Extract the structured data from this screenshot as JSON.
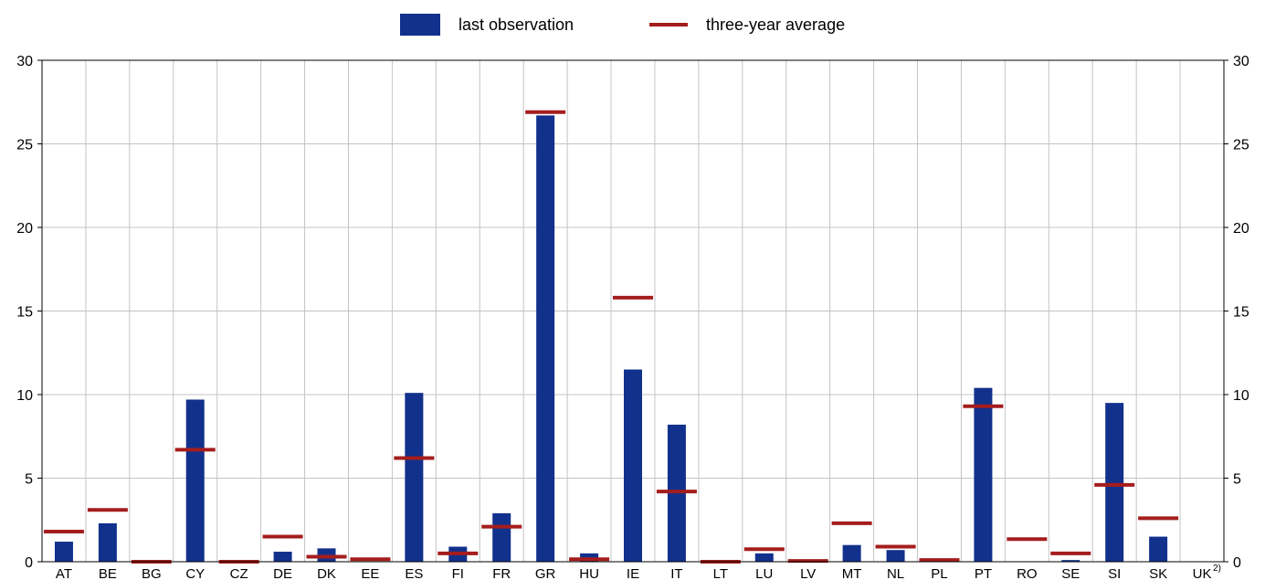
{
  "chart_data": {
    "type": "bar",
    "categories": [
      "AT",
      "BE",
      "BG",
      "CY",
      "CZ",
      "DE",
      "DK",
      "EE",
      "ES",
      "FI",
      "FR",
      "GR",
      "HU",
      "IE",
      "IT",
      "LT",
      "LU",
      "LV",
      "MT",
      "NL",
      "PL",
      "PT",
      "RO",
      "SE",
      "SI",
      "SK",
      "UK"
    ],
    "category_footnotes": {
      "UK": "2)"
    },
    "series": [
      {
        "name": "last observation",
        "style": "bar",
        "color": "#12318c",
        "values": [
          1.2,
          2.3,
          0.0,
          9.7,
          0.0,
          0.6,
          0.8,
          0.0,
          10.1,
          0.9,
          2.9,
          26.7,
          0.5,
          11.5,
          8.2,
          0.0,
          0.5,
          0.0,
          1.0,
          0.7,
          0.0,
          10.4,
          0.0,
          0.1,
          9.5,
          1.5,
          null
        ]
      },
      {
        "name": "three-year average",
        "style": "marker",
        "color": "#a51d1d",
        "values": [
          1.8,
          3.1,
          0.0,
          6.7,
          0.0,
          1.5,
          0.3,
          0.15,
          6.2,
          0.5,
          2.1,
          26.9,
          0.15,
          15.8,
          4.2,
          0.0,
          0.75,
          0.05,
          2.3,
          0.9,
          0.1,
          9.3,
          1.35,
          0.5,
          4.6,
          2.6,
          null
        ]
      }
    ],
    "ylim": [
      0,
      30
    ],
    "yticks": [
      0,
      5,
      10,
      15,
      20,
      25,
      30
    ],
    "grid": true,
    "legend_position": "top-center",
    "y_axis_both_sides": true
  }
}
